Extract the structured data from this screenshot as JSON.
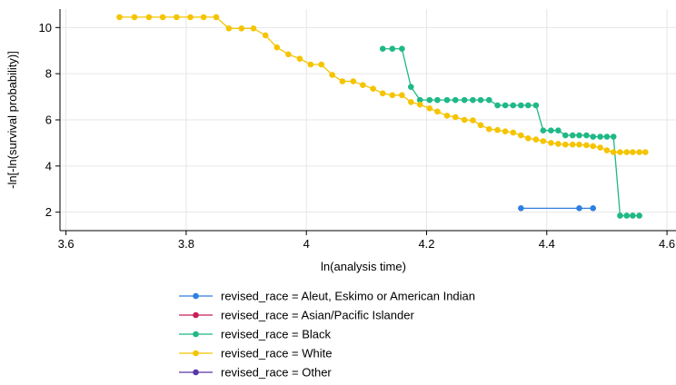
{
  "chart_data": {
    "type": "line",
    "xlabel": "ln(analysis time)",
    "ylabel": "-ln[-ln(survival probability)]",
    "xlim": [
      3.59,
      4.615
    ],
    "ylim": [
      1.2,
      10.8
    ],
    "xticks": [
      3.6,
      3.8,
      4,
      4.2,
      4.4,
      4.6
    ],
    "xtick_labels": [
      "3.6",
      "3.8",
      "4",
      "4.2",
      "4.4",
      "4.6"
    ],
    "yticks": [
      2,
      4,
      6,
      8,
      10
    ],
    "ytick_labels": [
      "2",
      "4",
      "6",
      "8",
      "10"
    ],
    "grid": true,
    "legend_position": "bottom",
    "series": [
      {
        "name": "revised_race = Aleut, Eskimo or American Indian",
        "color": "#2e7fe0",
        "x": [
          4.357,
          4.454,
          4.477
        ],
        "y": [
          2.17,
          2.17,
          2.17
        ]
      },
      {
        "name": "revised_race = Asian/Pacific Islander",
        "color": "#c81e5a",
        "x": [],
        "y": []
      },
      {
        "name": "revised_race = Black",
        "color": "#1fb887",
        "x": [
          4.127,
          4.143,
          4.159,
          4.174,
          4.189,
          4.205,
          4.218,
          4.234,
          4.248,
          4.263,
          4.277,
          4.29,
          4.304,
          4.318,
          4.331,
          4.344,
          4.357,
          4.369,
          4.382,
          4.394,
          4.407,
          4.419,
          4.431,
          4.443,
          4.454,
          4.466,
          4.477,
          4.489,
          4.5,
          4.511,
          4.522,
          4.533,
          4.543,
          4.554
        ],
        "y": [
          9.08,
          9.08,
          9.08,
          7.43,
          6.86,
          6.86,
          6.86,
          6.86,
          6.86,
          6.86,
          6.86,
          6.86,
          6.86,
          6.63,
          6.63,
          6.63,
          6.63,
          6.63,
          6.63,
          5.54,
          5.54,
          5.54,
          5.33,
          5.33,
          5.33,
          5.33,
          5.27,
          5.27,
          5.27,
          5.27,
          1.85,
          1.85,
          1.85,
          1.85
        ]
      },
      {
        "name": "revised_race = White",
        "color": "#f5c400",
        "x": [
          3.689,
          3.714,
          3.738,
          3.761,
          3.784,
          3.807,
          3.829,
          3.85,
          3.871,
          3.892,
          3.912,
          3.932,
          3.951,
          3.97,
          3.989,
          4.007,
          4.025,
          4.043,
          4.06,
          4.078,
          4.094,
          4.111,
          4.127,
          4.143,
          4.159,
          4.174,
          4.189,
          4.205,
          4.218,
          4.234,
          4.248,
          4.263,
          4.277,
          4.29,
          4.304,
          4.318,
          4.331,
          4.344,
          4.357,
          4.369,
          4.382,
          4.394,
          4.407,
          4.419,
          4.431,
          4.443,
          4.454,
          4.466,
          4.477,
          4.489,
          4.5,
          4.511,
          4.522,
          4.533,
          4.543,
          4.554,
          4.564
        ],
        "y": [
          10.45,
          10.45,
          10.45,
          10.45,
          10.45,
          10.45,
          10.45,
          10.45,
          9.96,
          9.96,
          9.96,
          9.66,
          9.14,
          8.84,
          8.65,
          8.4,
          8.4,
          7.95,
          7.67,
          7.67,
          7.51,
          7.35,
          7.15,
          7.07,
          7.07,
          6.77,
          6.66,
          6.5,
          6.36,
          6.18,
          6.12,
          6.0,
          5.98,
          5.77,
          5.6,
          5.56,
          5.5,
          5.45,
          5.33,
          5.2,
          5.15,
          5.08,
          5.0,
          4.96,
          4.93,
          4.93,
          4.93,
          4.9,
          4.86,
          4.8,
          4.68,
          4.6,
          4.6,
          4.6,
          4.6,
          4.6,
          4.6
        ]
      },
      {
        "name": "revised_race = Other",
        "color": "#5a36a8",
        "x": [],
        "y": []
      }
    ]
  }
}
